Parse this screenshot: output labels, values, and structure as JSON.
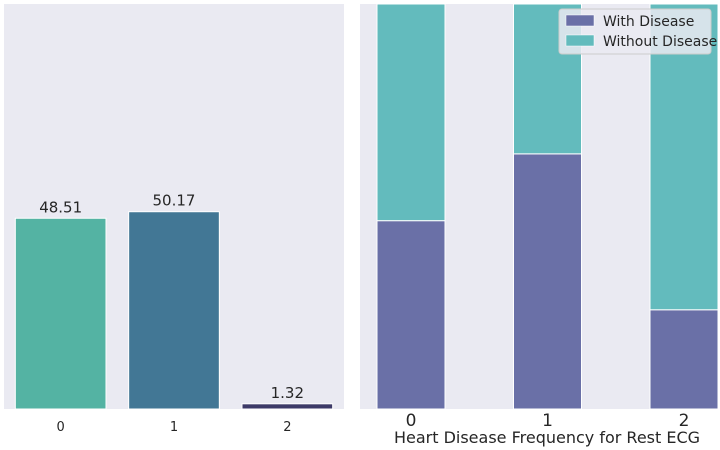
{
  "chart_data": [
    {
      "type": "bar",
      "categories": [
        "0",
        "1",
        "2"
      ],
      "values": [
        48.51,
        50.17,
        1.32
      ],
      "value_labels": [
        "48.51",
        "50.17",
        "1.32"
      ],
      "ylim": [
        0,
        103
      ],
      "grid": false,
      "colors": [
        "#54b3a3",
        "#427795",
        "#3d3a68"
      ],
      "background": "#eaeaf2"
    },
    {
      "type": "bar",
      "stacked": true,
      "normalized": true,
      "categories": [
        "0",
        "1",
        "2"
      ],
      "xlabel": "Heart Disease Frequency for Rest ECG",
      "ylim": [
        0,
        1
      ],
      "series": [
        {
          "name": "With Disease",
          "values": [
            0.465,
            0.63,
            0.245
          ],
          "color": "#6a70a7"
        },
        {
          "name": "Without Disease",
          "values": [
            0.535,
            0.37,
            0.755
          ],
          "color": "#63bbbd"
        }
      ],
      "legend": "top-right",
      "grid": false,
      "background": "#eaeaf2"
    }
  ]
}
